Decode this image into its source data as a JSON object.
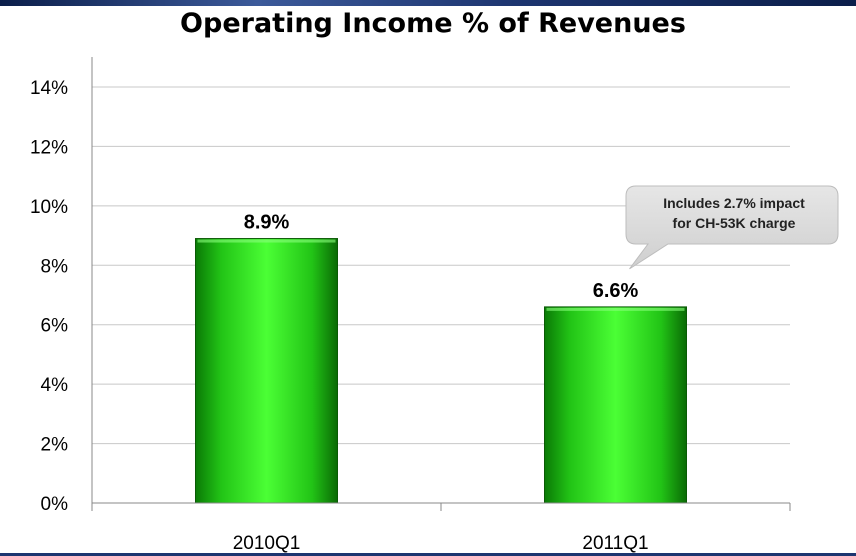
{
  "chart_data": {
    "type": "bar",
    "title": "Operating Income % of Revenues",
    "xlabel": "",
    "ylabel": "",
    "categories": [
      "2010Q1",
      "2011Q1"
    ],
    "values": [
      8.9,
      6.6
    ],
    "data_labels": [
      "8.9%",
      "6.6%"
    ],
    "ylim": [
      0,
      14
    ],
    "y_ticks": [
      0,
      2,
      4,
      6,
      8,
      10,
      12,
      14
    ],
    "y_tick_labels": [
      "0%",
      "2%",
      "4%",
      "6%",
      "8%",
      "10%",
      "12%",
      "14%"
    ],
    "grid": true,
    "legend": "none",
    "bar_color": "#22cc11",
    "annotations": [
      {
        "category": "2011Q1",
        "lines": [
          "Includes 2.7% impact",
          "for CH-53K charge"
        ]
      }
    ]
  }
}
